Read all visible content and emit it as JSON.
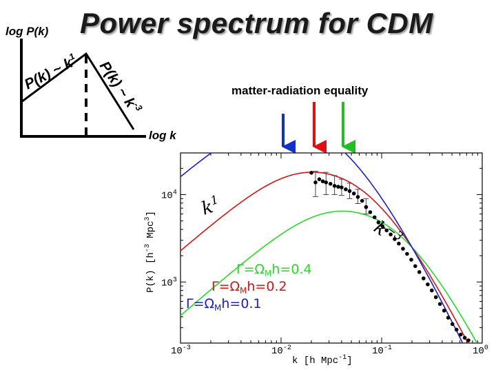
{
  "slide": {
    "title": "Power spectrum for CDM",
    "sketch": {
      "y_axis_label": "log P(k)",
      "x_axis_label": "log k",
      "rise_label": "P(k) ~ k",
      "rise_exponent": "1",
      "fall_label": "P(k) ~ k",
      "fall_exponent": "-3"
    },
    "annotation": "matter-radiation equality",
    "arrow_colors": [
      "#1030d0",
      "#e01010",
      "#20c020"
    ]
  },
  "chart_data": {
    "type": "line",
    "xscale": "log",
    "yscale": "log",
    "xlim": [
      0.001,
      1
    ],
    "ylim": [
      200,
      30000
    ],
    "xlabel": "k [h Mpc",
    "xlabel_exp": "-1",
    "xlabel_tail": "]",
    "ylabel": "P(k) [h",
    "ylabel_exp1": "-3",
    "ylabel_mid": " Mpc",
    "ylabel_exp2": "3",
    "ylabel_tail": "]",
    "x_ticks": [
      {
        "base": "10",
        "exp": "-3",
        "value": 0.001
      },
      {
        "base": "10",
        "exp": "-2",
        "value": 0.01
      },
      {
        "base": "10",
        "exp": "-1",
        "value": 0.1
      },
      {
        "base": "10",
        "exp": "0",
        "value": 1
      }
    ],
    "y_ticks": [
      {
        "base": "10",
        "exp": "3",
        "value": 1000
      },
      {
        "base": "10",
        "exp": "4",
        "value": 10000
      }
    ],
    "slope_labels": [
      {
        "text": "k",
        "exp": "1"
      },
      {
        "text": "k",
        "exp": "−3"
      }
    ],
    "series": [
      {
        "name": "Γ=ΩMh=0.4",
        "shape_param": 0.4,
        "color": "#22dd22",
        "legend": {
          "pre": "Γ=Ω",
          "sub": "M",
          "post": "h=0.4"
        }
      },
      {
        "name": "Γ=ΩMh=0.2",
        "shape_param": 0.2,
        "color": "#dd1111",
        "legend": {
          "pre": "Γ=Ω",
          "sub": "M",
          "post": "h=0.2"
        }
      },
      {
        "name": "Γ=ΩMh=0.1",
        "shape_param": 0.1,
        "color": "#1a1ae0",
        "legend": {
          "pre": "Γ=Ω",
          "sub": "M",
          "post": "h=0.1"
        }
      }
    ],
    "normalization": {
      "k": 0.2,
      "P": 2500
    },
    "observations": {
      "marker": "filled-circle",
      "color": "#000000",
      "k": [
        0.02,
        0.022,
        0.024,
        0.026,
        0.028,
        0.031,
        0.034,
        0.037,
        0.04,
        0.044,
        0.048,
        0.053,
        0.058,
        0.064,
        0.07,
        0.077,
        0.085,
        0.093,
        0.102,
        0.112,
        0.123,
        0.135,
        0.148,
        0.163,
        0.179,
        0.197,
        0.216,
        0.237,
        0.261,
        0.287,
        0.315,
        0.346,
        0.38,
        0.418,
        0.459,
        0.505,
        0.555,
        0.61,
        0.67,
        0.73
      ],
      "P": [
        17800,
        13800,
        15000,
        14200,
        13800,
        13300,
        12600,
        12300,
        12100,
        11500,
        11000,
        10300,
        9400,
        8500,
        7200,
        6300,
        5500,
        4800,
        4350,
        3900,
        3500,
        3100,
        2750,
        2400,
        2100,
        1800,
        1520,
        1300,
        1100,
        940,
        800,
        670,
        560,
        470,
        390,
        330,
        285,
        250,
        230,
        215
      ],
      "error_k": [
        0.022,
        0.028,
        0.034,
        0.04,
        0.048,
        0.058,
        0.07
      ],
      "error_lo": [
        9500,
        10000,
        10000,
        9800,
        9000,
        7900,
        6000
      ],
      "error_hi": [
        18500,
        18000,
        16500,
        15000,
        13500,
        11500,
        9000
      ]
    }
  }
}
